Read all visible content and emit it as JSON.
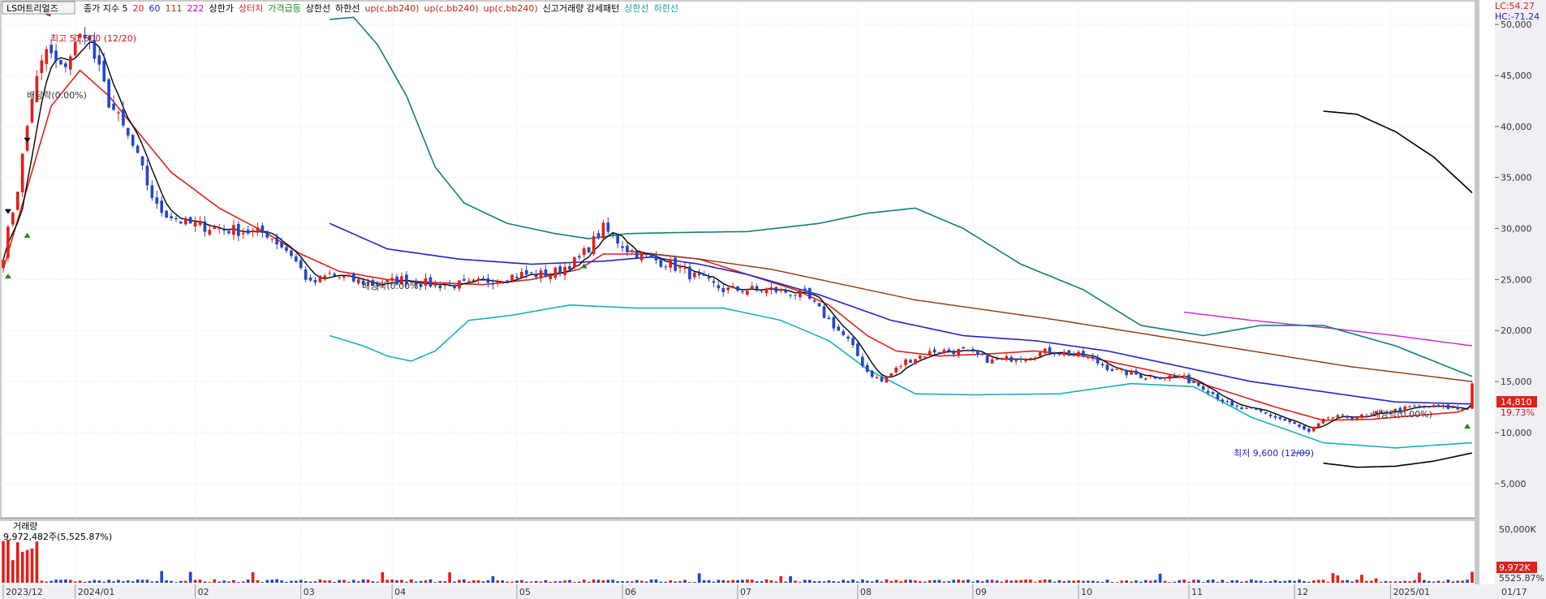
{
  "header": {
    "stock_name": "LS머트리얼즈",
    "legend_items": [
      {
        "text": "종가 지수 5",
        "color": "#000000"
      },
      {
        "text": "20",
        "color": "#e0201a"
      },
      {
        "text": "60",
        "color": "#2323c8"
      },
      {
        "text": "111",
        "color": "#8b3a0f"
      },
      {
        "text": "222",
        "color": "#c000c0"
      },
      {
        "text": "상한가",
        "color": "#000000"
      },
      {
        "text": "상터치",
        "color": "#e0201a"
      },
      {
        "text": "가격급등",
        "color": "#1a8c1a"
      },
      {
        "text": "상한선",
        "color": "#000000"
      },
      {
        "text": "하한선",
        "color": "#000000"
      },
      {
        "text": "up(c,bb240)",
        "color": "#c0201a"
      },
      {
        "text": "up(c,bb240)",
        "color": "#c0201a"
      },
      {
        "text": "up(c,bb240)",
        "color": "#c0201a"
      },
      {
        "text": "신고거래량 강세패턴",
        "color": "#000000"
      },
      {
        "text": "상한선",
        "color": "#1a9c8c"
      },
      {
        "text": "하한선",
        "color": "#1aa0b0"
      }
    ],
    "lc_label": "LC:54.27",
    "hc_label": "HC:-71.24"
  },
  "annotations": {
    "high": "최고 51,500 (12/20)",
    "low": "최저 9,600 (12/09)",
    "dividend": "배당락(0.00%)"
  },
  "volume_panel": {
    "title": "거래량",
    "subtitle": "9,972,482주(5,525.87%)",
    "axis_top": "50,000K",
    "current": "9,972K",
    "current_pct": "5525.87%"
  },
  "price_badge": {
    "value": "14,810",
    "pct": "19.73%"
  },
  "chart_data": {
    "type": "candlestick",
    "y_ticks": [
      5000,
      10000,
      15000,
      20000,
      25000,
      30000,
      35000,
      40000,
      45000,
      50000
    ],
    "y_tick_labels": [
      "5,000",
      "10,000",
      "15,000",
      "20,000",
      "25,000",
      "30,000",
      "35,000",
      "40,000",
      "45,000",
      "50,000"
    ],
    "x_labels": [
      "2023/12",
      "2024/01",
      "02",
      "03",
      "04",
      "05",
      "06",
      "07",
      "08",
      "09",
      "10",
      "11",
      "12",
      "2025/01",
      "01/17"
    ],
    "x_label_days": [
      0,
      15,
      40,
      62,
      81,
      107,
      129,
      153,
      178,
      202,
      224,
      247,
      269,
      289,
      306
    ],
    "total_days": 306,
    "close_anchors": [
      [
        0,
        27500
      ],
      [
        3,
        34000
      ],
      [
        6,
        43000
      ],
      [
        9,
        47500
      ],
      [
        12,
        45500
      ],
      [
        17,
        49500
      ],
      [
        22,
        42500
      ],
      [
        27,
        38000
      ],
      [
        32,
        32000
      ],
      [
        38,
        30500
      ],
      [
        45,
        30000
      ],
      [
        55,
        29500
      ],
      [
        60,
        27500
      ],
      [
        64,
        24500
      ],
      [
        68,
        25500
      ],
      [
        72,
        25000
      ],
      [
        78,
        24500
      ],
      [
        83,
        25000
      ],
      [
        90,
        24500
      ],
      [
        97,
        24500
      ],
      [
        102,
        25000
      ],
      [
        108,
        25500
      ],
      [
        114,
        25500
      ],
      [
        120,
        27000
      ],
      [
        125,
        30000
      ],
      [
        130,
        28000
      ],
      [
        135,
        27000
      ],
      [
        139,
        26500
      ],
      [
        143,
        25500
      ],
      [
        150,
        24000
      ],
      [
        160,
        24000
      ],
      [
        167,
        23500
      ],
      [
        172,
        21000
      ],
      [
        176,
        19000
      ],
      [
        180,
        16000
      ],
      [
        183,
        15000
      ],
      [
        188,
        17000
      ],
      [
        194,
        18000
      ],
      [
        200,
        18000
      ],
      [
        206,
        17000
      ],
      [
        213,
        17500
      ],
      [
        218,
        18000
      ],
      [
        225,
        17500
      ],
      [
        232,
        16000
      ],
      [
        238,
        15500
      ],
      [
        245,
        15500
      ],
      [
        250,
        14500
      ],
      [
        256,
        12500
      ],
      [
        262,
        12000
      ],
      [
        268,
        11000
      ],
      [
        272,
        10000
      ],
      [
        276,
        11500
      ],
      [
        282,
        11500
      ],
      [
        288,
        12000
      ],
      [
        294,
        12500
      ],
      [
        300,
        12500
      ],
      [
        303,
        12300
      ],
      [
        305,
        12400
      ],
      [
        306,
        14810
      ]
    ],
    "ma_anchors": {
      "ma20": [
        [
          0,
          26000
        ],
        [
          5,
          34000
        ],
        [
          10,
          42000
        ],
        [
          16,
          45500
        ],
        [
          22,
          43000
        ],
        [
          28,
          39500
        ],
        [
          35,
          35500
        ],
        [
          45,
          32000
        ],
        [
          55,
          29500
        ],
        [
          62,
          27500
        ],
        [
          70,
          25800
        ],
        [
          80,
          25000
        ],
        [
          90,
          24700
        ],
        [
          100,
          24500
        ],
        [
          110,
          25000
        ],
        [
          120,
          26000
        ],
        [
          125,
          27500
        ],
        [
          135,
          27500
        ],
        [
          145,
          27000
        ],
        [
          155,
          25500
        ],
        [
          165,
          24000
        ],
        [
          172,
          22500
        ],
        [
          180,
          19500
        ],
        [
          186,
          18000
        ],
        [
          195,
          17500
        ],
        [
          205,
          17700
        ],
        [
          215,
          18000
        ],
        [
          225,
          17500
        ],
        [
          235,
          16500
        ],
        [
          245,
          15500
        ],
        [
          255,
          14000
        ],
        [
          265,
          12500
        ],
        [
          275,
          11200
        ],
        [
          285,
          11300
        ],
        [
          295,
          11700
        ],
        [
          303,
          12000
        ],
        [
          306,
          12600
        ]
      ],
      "ma60": [
        [
          68,
          30500
        ],
        [
          80,
          28000
        ],
        [
          95,
          27000
        ],
        [
          110,
          26500
        ],
        [
          125,
          26800
        ],
        [
          135,
          27200
        ],
        [
          145,
          26500
        ],
        [
          155,
          25500
        ],
        [
          170,
          23500
        ],
        [
          185,
          21000
        ],
        [
          200,
          19500
        ],
        [
          215,
          19000
        ],
        [
          230,
          18000
        ],
        [
          245,
          16500
        ],
        [
          260,
          15000
        ],
        [
          275,
          14000
        ],
        [
          290,
          13000
        ],
        [
          306,
          12800
        ]
      ],
      "ma111": [
        [
          130,
          27800
        ],
        [
          145,
          27000
        ],
        [
          160,
          26000
        ],
        [
          175,
          24500
        ],
        [
          190,
          23000
        ],
        [
          205,
          22000
        ],
        [
          220,
          21000
        ],
        [
          240,
          19500
        ],
        [
          260,
          18000
        ],
        [
          280,
          16500
        ],
        [
          306,
          15000
        ]
      ],
      "ma222": [
        [
          246,
          21800
        ],
        [
          260,
          21000
        ],
        [
          275,
          20300
        ],
        [
          290,
          19500
        ],
        [
          306,
          18500
        ]
      ],
      "bb_upper": [
        [
          68,
          50500
        ],
        [
          73,
          50700
        ],
        [
          78,
          48000
        ],
        [
          84,
          43000
        ],
        [
          90,
          36000
        ],
        [
          96,
          32500
        ],
        [
          105,
          30500
        ],
        [
          115,
          29500
        ],
        [
          122,
          29000
        ],
        [
          130,
          29500
        ],
        [
          140,
          29600
        ],
        [
          155,
          29700
        ],
        [
          170,
          30500
        ],
        [
          180,
          31500
        ],
        [
          190,
          32000
        ],
        [
          200,
          30000
        ],
        [
          212,
          26500
        ],
        [
          225,
          24000
        ],
        [
          237,
          20500
        ],
        [
          250,
          19500
        ],
        [
          262,
          20500
        ],
        [
          275,
          20500
        ],
        [
          290,
          18500
        ],
        [
          306,
          15500
        ]
      ],
      "bb_lower": [
        [
          68,
          19500
        ],
        [
          75,
          18500
        ],
        [
          80,
          17500
        ],
        [
          85,
          17000
        ],
        [
          90,
          18000
        ],
        [
          97,
          21000
        ],
        [
          106,
          21500
        ],
        [
          118,
          22500
        ],
        [
          132,
          22200
        ],
        [
          150,
          22200
        ],
        [
          162,
          21000
        ],
        [
          172,
          19000
        ],
        [
          180,
          16200
        ],
        [
          190,
          13800
        ],
        [
          202,
          13700
        ],
        [
          220,
          13800
        ],
        [
          235,
          14800
        ],
        [
          248,
          14500
        ],
        [
          260,
          11500
        ],
        [
          275,
          9000
        ],
        [
          290,
          8500
        ],
        [
          306,
          9000
        ]
      ],
      "env_upper": [
        [
          275,
          41500
        ],
        [
          282,
          41200
        ],
        [
          290,
          39500
        ],
        [
          298,
          37000
        ],
        [
          306,
          33500
        ]
      ],
      "env_lower": [
        [
          275,
          7000
        ],
        [
          282,
          6600
        ],
        [
          290,
          6700
        ],
        [
          298,
          7200
        ],
        [
          306,
          8000
        ]
      ]
    },
    "volume_spike_day": 306,
    "volume_max_k": 50000
  }
}
